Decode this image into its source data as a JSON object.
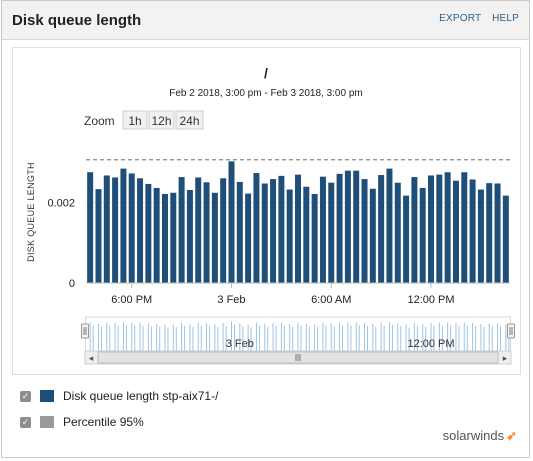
{
  "panel": {
    "title": "Disk queue length",
    "links": {
      "export": "EXPORT",
      "help": "HELP"
    }
  },
  "chart_header": {
    "title": "/",
    "date_range": "Feb 2 2018, 3:00 pm - Feb 3 2018, 3:00 pm"
  },
  "zoom": {
    "label": "Zoom",
    "buttons": [
      "1h",
      "12h",
      "24h"
    ]
  },
  "colors": {
    "series": "#1f4e79",
    "percentile": "#888888",
    "navigator": "#9fc3e6",
    "brand_accent": "#f18a21"
  },
  "chart_data": {
    "type": "bar",
    "title": "/",
    "subtitle": "Feb 2 2018, 3:00 pm - Feb 3 2018, 3:00 pm",
    "ylabel": "DISK QUEUE LENGTH",
    "xlabel": "",
    "ylim": [
      0,
      0.0036
    ],
    "yticks": [
      {
        "value": 0,
        "label": "0"
      },
      {
        "value": 0.002,
        "label": "0.002"
      }
    ],
    "xticks": [
      {
        "index": 5,
        "label": "6:00 PM"
      },
      {
        "index": 17,
        "label": "3 Feb"
      },
      {
        "index": 29,
        "label": "6:00 AM"
      },
      {
        "index": 41,
        "label": "12:00 PM"
      }
    ],
    "navigator_labels": [
      {
        "index": 18,
        "label": "3 Feb"
      },
      {
        "index": 41,
        "label": "12:00 PM"
      }
    ],
    "percentile_95": 0.00306,
    "grid": true,
    "series": [
      {
        "name": "Disk queue length stp-aix71-/",
        "values": [
          0.00275,
          0.00233,
          0.00267,
          0.00262,
          0.00284,
          0.00272,
          0.0026,
          0.00246,
          0.00236,
          0.00221,
          0.00224,
          0.00263,
          0.00231,
          0.00262,
          0.0025,
          0.00224,
          0.0026,
          0.00302,
          0.00251,
          0.00222,
          0.00273,
          0.00247,
          0.00258,
          0.00266,
          0.00232,
          0.00269,
          0.00239,
          0.00221,
          0.00264,
          0.00249,
          0.00271,
          0.00279,
          0.00279,
          0.00258,
          0.00234,
          0.00268,
          0.00284,
          0.00249,
          0.00217,
          0.00263,
          0.00236,
          0.00267,
          0.00269,
          0.00275,
          0.00254,
          0.00275,
          0.00257,
          0.00232,
          0.00248,
          0.00247,
          0.00217
        ]
      },
      {
        "name": "Percentile 95%",
        "values": [
          0.00306
        ]
      }
    ]
  },
  "legend": [
    {
      "label": "Disk queue length stp-aix71-/",
      "checked": true,
      "color": "#1f4e79"
    },
    {
      "label": "Percentile 95%",
      "checked": true,
      "color": "#999999"
    }
  ],
  "brand": {
    "name": "solarwinds"
  }
}
